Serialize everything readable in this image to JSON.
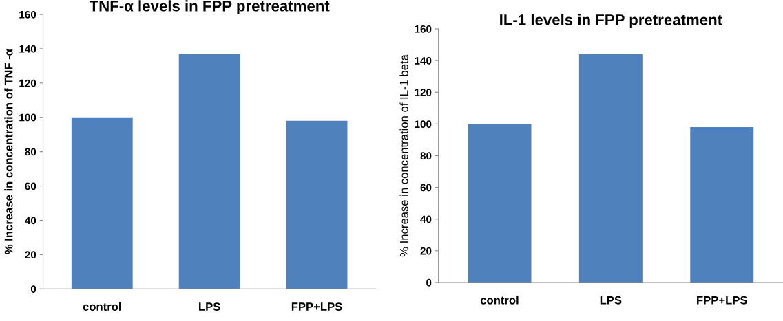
{
  "chart_data": [
    {
      "type": "bar",
      "title": "TNF-α levels in FPP pretreatment",
      "ylabel": "% Increase in concentration of TNF -α",
      "categories": [
        "control",
        "LPS",
        "FPP+LPS"
      ],
      "values": [
        100,
        137,
        98
      ],
      "color": "#4f81bd",
      "ylim": [
        0,
        160
      ],
      "yticks": [
        0,
        20,
        40,
        60,
        80,
        100,
        120,
        140,
        160
      ],
      "grid": false
    },
    {
      "type": "bar",
      "title": "IL-1 levels in FPP pretreatment",
      "ylabel": "% Increase in concentration of IL-1 beta",
      "categories": [
        "control",
        "LPS",
        "FPP+LPS"
      ],
      "values": [
        100,
        144,
        98
      ],
      "color": "#4f81bd",
      "ylim": [
        0,
        160
      ],
      "yticks": [
        0,
        20,
        40,
        60,
        80,
        100,
        120,
        140,
        160
      ],
      "grid": false
    }
  ]
}
